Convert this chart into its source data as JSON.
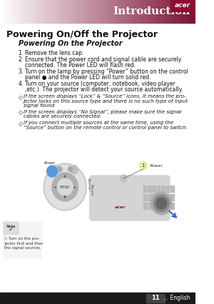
{
  "title": "Introduction",
  "title_bg_color": "#8B1A3A",
  "title_text_color": "#FFFFFF",
  "title_font_size": 11,
  "section_title": "Powering On/Off the Projector",
  "subsection_title": "Powering On the Projector",
  "numbered_items": [
    "Remove the lens cap.",
    "Ensure that the power cord and signal cable are securely\nconnected. The Power LED will flash red.",
    "Turn on the lamp by pressing “Power” button on the control\npanel ● and the Power LED will turn solid red.",
    "Turn on your source (computer, notebook, video player\n,etc.). The projector will detect your source automatically."
  ],
  "bullet_items": [
    "If the screen displays “Lock” & “Source” icons, it means the pro-\njector locks on this source type and there is no such type of input\nsignal found",
    "If the screen displays “No Signal”, please make sure the signal\ncables are securely connected.",
    "If you connect multiple sources at the same time, using the\n“Source” button on the remote control or control panel to switch."
  ],
  "note_text": "◇ Turn on the pro-\njector first and then\nthe signal sources.",
  "page_number": "11",
  "page_label": "... English",
  "footer_bg": "#1A1A1A",
  "footer_text_color": "#FFFFFF",
  "header_dark": "#7A1030",
  "header_mid": "#C06080",
  "acer_red": "#CC0000"
}
